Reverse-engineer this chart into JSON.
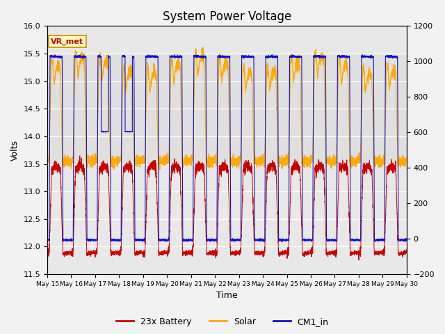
{
  "title": "System Power Voltage",
  "xlabel": "Time",
  "ylabel": "Volts",
  "ylim_left": [
    11.5,
    16.0
  ],
  "ylim_right": [
    -200,
    1200
  ],
  "yticks_left": [
    11.5,
    12.0,
    12.5,
    13.0,
    13.5,
    14.0,
    14.5,
    15.0,
    15.5,
    16.0
  ],
  "yticks_right": [
    -200,
    0,
    200,
    400,
    600,
    800,
    1000,
    1200
  ],
  "colors": {
    "battery": "#cc0000",
    "solar": "#ffaa00",
    "cm1": "#1111cc"
  },
  "legend_labels": [
    "23x Battery",
    "Solar",
    "CM1_in"
  ],
  "vr_met_label": "VR_met",
  "figsize": [
    6.4,
    4.8
  ],
  "dpi": 100,
  "title_fontsize": 12,
  "axis_fontsize": 9,
  "tick_fontsize": 8,
  "legend_fontsize": 9
}
